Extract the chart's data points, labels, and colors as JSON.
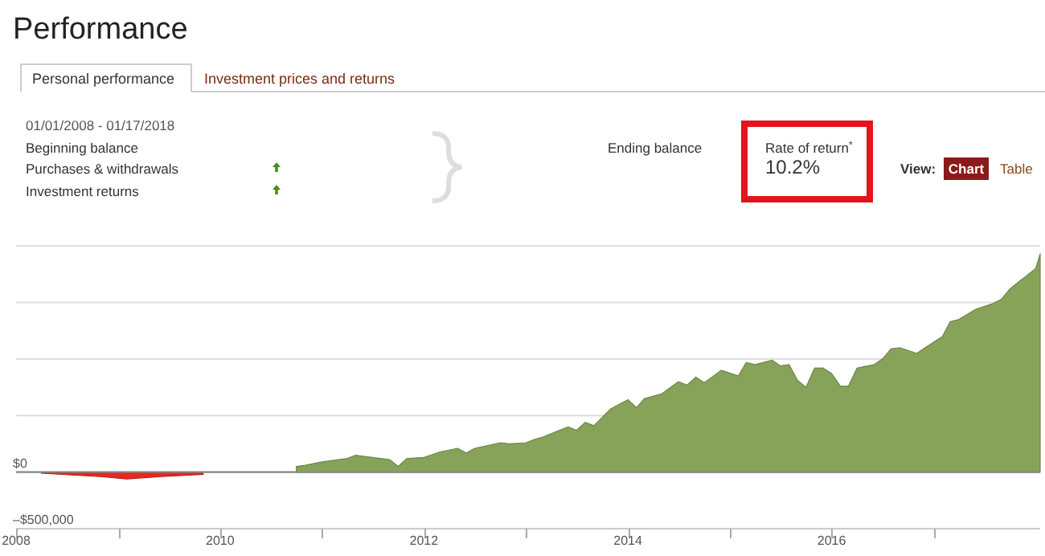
{
  "chart_data": {
    "type": "area",
    "title": "Performance",
    "annotations": [
      "Personal performance",
      "Investment prices and returns",
      "01/01/2008 - 01/17/2018",
      "Beginning balance",
      "Purchases & withdrawals",
      "Investment returns",
      "Ending balance",
      "Rate of return$^{*}$",
      "10.2%",
      "View:",
      "Chart",
      "Table"
    ],
    "xlim": [
      "2008-01-01",
      "2018-01-17"
    ],
    "xticks": [
      "2008",
      {
        "value": "2009",
        "label": null
      },
      "2010",
      {
        "value": "2011",
        "label": null
      },
      "2012",
      {
        "value": "2013",
        "label": null
      },
      "2014",
      {
        "value": "2015",
        "label": null
      },
      "2016",
      {
        "value": "2017",
        "label": null
      }
    ],
    "ylim": [
      -500000,
      2000000
    ],
    "yticks": [
      {
        "value": -500000,
        "label": "–$500,000"
      },
      {
        "value": 0,
        "label": "$0"
      },
      {
        "value": 500000,
        "label": null
      },
      {
        "value": 1000000,
        "label": null
      },
      {
        "value": 1500000,
        "label": null
      },
      {
        "value": 2000000,
        "label": null
      }
    ],
    "grid": "y",
    "series": [
      {
        "color": "#e8261f",
        "x": [
          "2008-04",
          "2008-11",
          "2009-02",
          "2009-06",
          "2009-11"
        ],
        "values": [
          -10000,
          -40000,
          -60000,
          -40000,
          -20000
        ]
      },
      {
        "color": "#87a35a",
        "x": [
          "2010-10",
          "2010-11",
          "2011-01",
          "2011-04",
          "2011-05",
          "2011-07",
          "2011-09",
          "2011-10",
          "2011-11",
          "2012-01",
          "2012-03",
          "2012-05",
          "2012-06",
          "2012-07",
          "2012-10",
          "2012-11",
          "2013-01",
          "2013-02",
          "2013-03",
          "2013-05",
          "2013-06",
          "2013-07",
          "2013-08",
          "2013-09",
          "2013-11",
          "2014-01",
          "2014-02",
          "2014-03",
          "2014-05",
          "2014-07",
          "2014-08",
          "2014-09",
          "2014-10",
          "2014-12",
          "2015-02",
          "2015-03",
          "2015-04",
          "2015-06",
          "2015-07",
          "2015-08",
          "2015-09",
          "2015-10",
          "2015-11",
          "2015-12",
          "2016-01",
          "2016-02",
          "2016-03",
          "2016-04",
          "2016-06",
          "2016-07",
          "2016-08",
          "2016-09",
          "2016-11",
          "2016-12",
          "2017-02",
          "2017-03",
          "2017-04",
          "2017-06",
          "2017-08",
          "2017-09",
          "2017-10",
          "2017-12",
          "2018-01-01",
          "2018-01-17"
        ],
        "values": [
          50000,
          60000,
          90000,
          120000,
          150000,
          130000,
          110000,
          50000,
          120000,
          130000,
          180000,
          210000,
          170000,
          210000,
          260000,
          250000,
          260000,
          290000,
          310000,
          370000,
          400000,
          370000,
          440000,
          410000,
          560000,
          640000,
          570000,
          650000,
          690000,
          800000,
          770000,
          840000,
          790000,
          900000,
          850000,
          970000,
          950000,
          990000,
          940000,
          950000,
          810000,
          750000,
          920000,
          920000,
          870000,
          760000,
          760000,
          920000,
          950000,
          1000000,
          1090000,
          1100000,
          1050000,
          1100000,
          1200000,
          1330000,
          1350000,
          1440000,
          1490000,
          1530000,
          1620000,
          1740000,
          1800000,
          1930000
        ]
      }
    ]
  }
}
